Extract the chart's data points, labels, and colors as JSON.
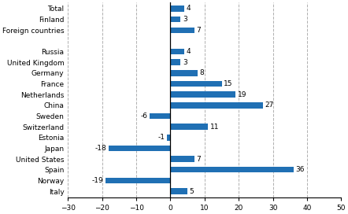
{
  "categories": [
    "Total",
    "Finland",
    "Foreign countries",
    "",
    "Russia",
    "United Kingdom",
    "Germany",
    "France",
    "Netherlands",
    "China",
    "Sweden",
    "Switzerland",
    "Estonia",
    "Japan",
    "United States",
    "Spain",
    "Norway",
    "Italy"
  ],
  "values": [
    4,
    3,
    7,
    null,
    4,
    3,
    8,
    15,
    19,
    27,
    -6,
    11,
    -1,
    -18,
    7,
    36,
    -19,
    5
  ],
  "bar_color": "#2070b4",
  "xlim": [
    -30,
    50
  ],
  "xticks": [
    -30,
    -20,
    -10,
    0,
    10,
    20,
    30,
    40,
    50
  ],
  "grid_color": "#b0b0b0",
  "bar_height": 0.55,
  "label_fontsize": 6.5,
  "value_fontsize": 6.5,
  "figsize": [
    4.42,
    2.72
  ],
  "dpi": 100
}
